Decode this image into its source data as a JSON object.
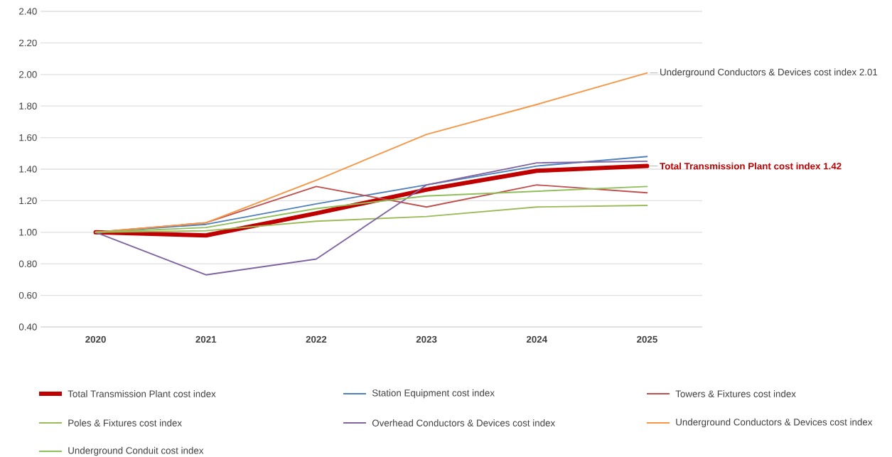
{
  "chart_data": {
    "type": "line",
    "categories": [
      "2020",
      "2021",
      "2022",
      "2023",
      "2024",
      "2025"
    ],
    "series": [
      {
        "name": "Total Transmission Plant cost index",
        "color": "#c00000",
        "values": [
          1.0,
          0.98,
          1.12,
          1.27,
          1.39,
          1.42
        ]
      },
      {
        "name": "Station Equipment cost index",
        "color": "#4f81bd",
        "values": [
          1.0,
          1.05,
          1.18,
          1.3,
          1.42,
          1.48
        ]
      },
      {
        "name": "Towers & Fixtures cost index",
        "color": "#c0504d",
        "values": [
          1.0,
          1.06,
          1.29,
          1.16,
          1.3,
          1.25
        ]
      },
      {
        "name": "Poles & Fixtures cost index",
        "color": "#9bbb59",
        "values": [
          1.0,
          1.01,
          1.07,
          1.1,
          1.16,
          1.17
        ]
      },
      {
        "name": "Overhead Conductors & Devices cost index",
        "color": "#8064a2",
        "values": [
          1.0,
          0.73,
          0.83,
          1.3,
          1.44,
          1.45
        ]
      },
      {
        "name": "Underground Conductors & Devices cost index",
        "color": "#f79646",
        "values": [
          1.0,
          1.06,
          1.33,
          1.62,
          1.81,
          2.01
        ]
      },
      {
        "name": "Underground Conduit cost index",
        "color": "#8fbf5a",
        "values": [
          1.0,
          1.03,
          1.15,
          1.23,
          1.26,
          1.29
        ]
      }
    ],
    "ylim": [
      0.4,
      2.4
    ],
    "yticks": [
      {
        "value": 0.4,
        "label": "0.40"
      },
      {
        "value": 0.6,
        "label": "0.60"
      },
      {
        "value": 0.8,
        "label": "0.80"
      },
      {
        "value": 1.0,
        "label": "1.00"
      },
      {
        "value": 1.2,
        "label": "1.20"
      },
      {
        "value": 1.4,
        "label": "1.40"
      },
      {
        "value": 1.6,
        "label": "1.60"
      },
      {
        "value": 1.8,
        "label": "1.80"
      },
      {
        "value": 2.0,
        "label": "2.00"
      },
      {
        "value": 2.2,
        "label": "2.20"
      },
      {
        "value": 2.4,
        "label": "2.40"
      }
    ],
    "annotations": [
      {
        "text": "Underground Conductors & Devices cost index 2.01",
        "x": "2025",
        "y": 2.01
      },
      {
        "text": "Total Transmission Plant cost index 1.42",
        "x": "2025",
        "y": 1.42
      }
    ],
    "grid": "y",
    "legend": "bottom",
    "marker": "none",
    "line_style": "solid"
  }
}
